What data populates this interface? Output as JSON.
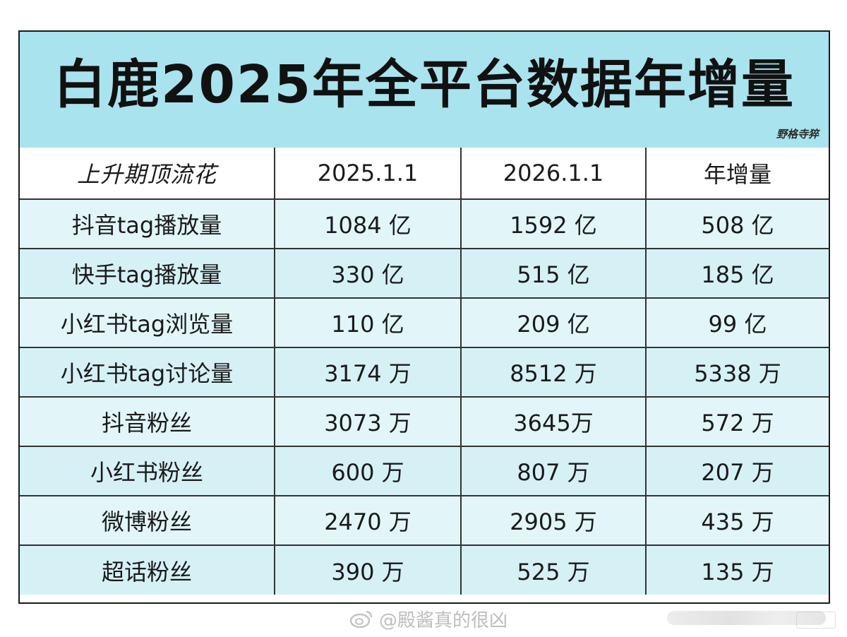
{
  "title": "白鹿2025年全平台数据年增量",
  "signature": "野格寺猝",
  "watermark_text": "@殿酱真的很凶",
  "colors": {
    "title_band": "#a9e3ee",
    "row_fill": "#e2f6fa",
    "accent_red": "#e0161a",
    "border": "#333333"
  },
  "chart_data": {
    "type": "table",
    "title": "白鹿2025年全平台数据年增量",
    "columns": [
      "上升期顶流花",
      "2025.1.1",
      "2026.1.1",
      "年增量"
    ],
    "rows": [
      {
        "metric": "抖音tag播放量",
        "v2025": "1084 亿",
        "v2026": "1592 亿",
        "increase": "508 亿"
      },
      {
        "metric": "快手tag播放量",
        "v2025": "330 亿",
        "v2026": "515 亿",
        "increase": "185 亿"
      },
      {
        "metric": "小红书tag浏览量",
        "v2025": "110 亿",
        "v2026": "209 亿",
        "increase": "99 亿"
      },
      {
        "metric": "小红书tag讨论量",
        "v2025": "3174 万",
        "v2026": "8512 万",
        "increase": "5338 万"
      },
      {
        "metric": "抖音粉丝",
        "v2025": "3073 万",
        "v2026": "3645万",
        "increase": "572 万"
      },
      {
        "metric": "小红书粉丝",
        "v2025": "600 万",
        "v2026": "807 万",
        "increase": "207 万"
      },
      {
        "metric": "微博粉丝",
        "v2025": "2470 万",
        "v2026": "2905 万",
        "increase": "435 万"
      },
      {
        "metric": "超话粉丝",
        "v2025": "390 万",
        "v2026": "525 万",
        "increase": "135 万"
      }
    ]
  }
}
